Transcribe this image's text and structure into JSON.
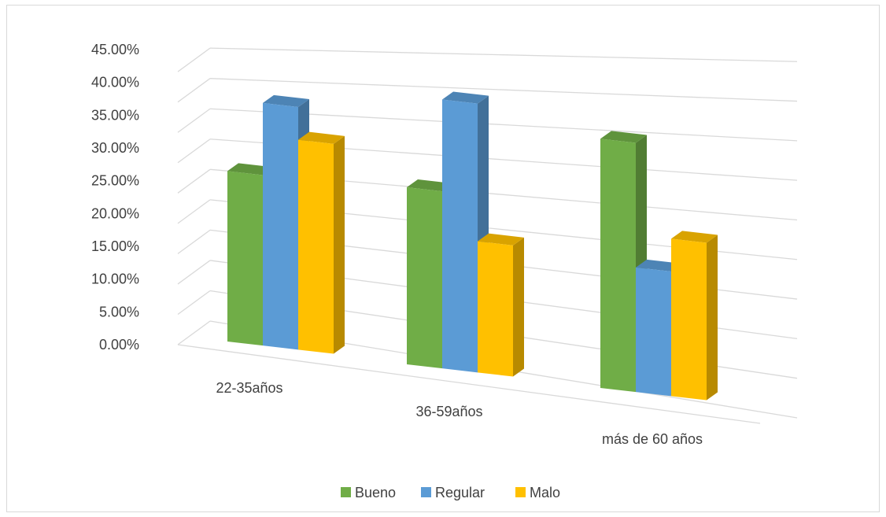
{
  "chart_data": {
    "type": "bar",
    "title": "",
    "xlabel": "",
    "ylabel": "",
    "categories": [
      "22-35años",
      "36-59años",
      "más de 60 años"
    ],
    "series": [
      {
        "name": "Bueno",
        "values": [
          26.0,
          27.0,
          38.0
        ],
        "color": "#70ad47"
      },
      {
        "name": "Regular",
        "values": [
          37.0,
          41.0,
          19.0
        ],
        "color": "#5b9bd5"
      },
      {
        "name": "Malo",
        "values": [
          32.0,
          20.0,
          24.0
        ],
        "color": "#ffc000"
      }
    ],
    "yticks": [
      "0.00%",
      "5.00%",
      "10.00%",
      "15.00%",
      "20.00%",
      "25.00%",
      "30.00%",
      "35.00%",
      "40.00%",
      "45.00%"
    ],
    "ylim": [
      0,
      45
    ],
    "grid": true,
    "legend": "bottom",
    "projection": "3d-perspective"
  }
}
